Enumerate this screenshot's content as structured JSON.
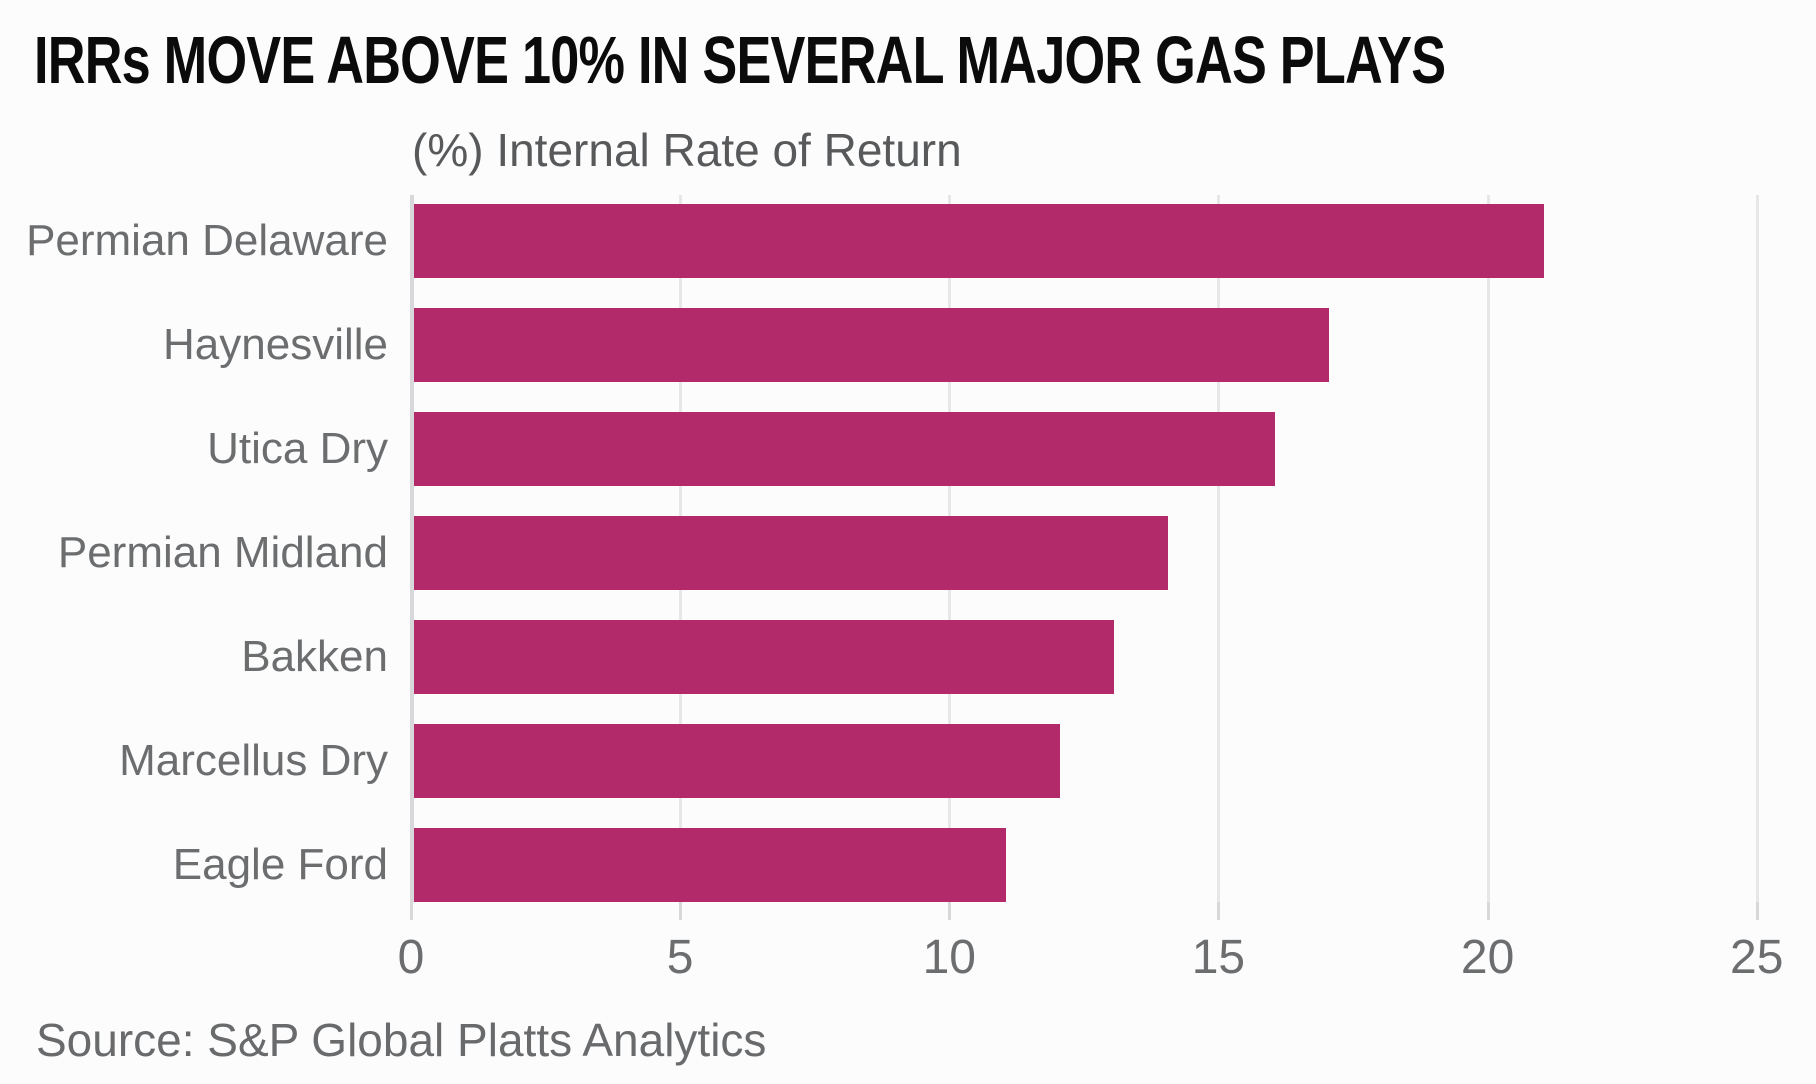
{
  "title": "IRRs MOVE ABOVE 10% IN SEVERAL MAJOR GAS PLAYS",
  "subtitle": "(%) Internal Rate of Return",
  "source": "Source: S&P Global Platts Analytics",
  "colors": {
    "bar": "#B22A69",
    "gridline": "#E7E7E9",
    "axis": "#D8D8DA",
    "title_text": "#0B0B0B",
    "category_text": "#6B6D6F",
    "tick_text": "#6B6D6F",
    "subtitle_text": "#57595B",
    "source_text": "#686A6C",
    "background": "#FCFCFC"
  },
  "chart_data": {
    "type": "bar",
    "orientation": "horizontal",
    "title": "IRRs MOVE ABOVE 10% IN SEVERAL MAJOR GAS PLAYS",
    "xlabel": "(%) Internal Rate of Return",
    "categories": [
      "Permian Delaware",
      "Haynesville",
      "Utica Dry",
      "Permian Midland",
      "Bakken",
      "Marcellus Dry",
      "Eagle Ford"
    ],
    "values": [
      21,
      17,
      16,
      14,
      13,
      12,
      11
    ],
    "xlim": [
      0,
      25
    ],
    "xticks": [
      0,
      5,
      10,
      15,
      20,
      25
    ],
    "grid": true,
    "legend": false,
    "source": "Source: S&P Global Platts Analytics"
  }
}
